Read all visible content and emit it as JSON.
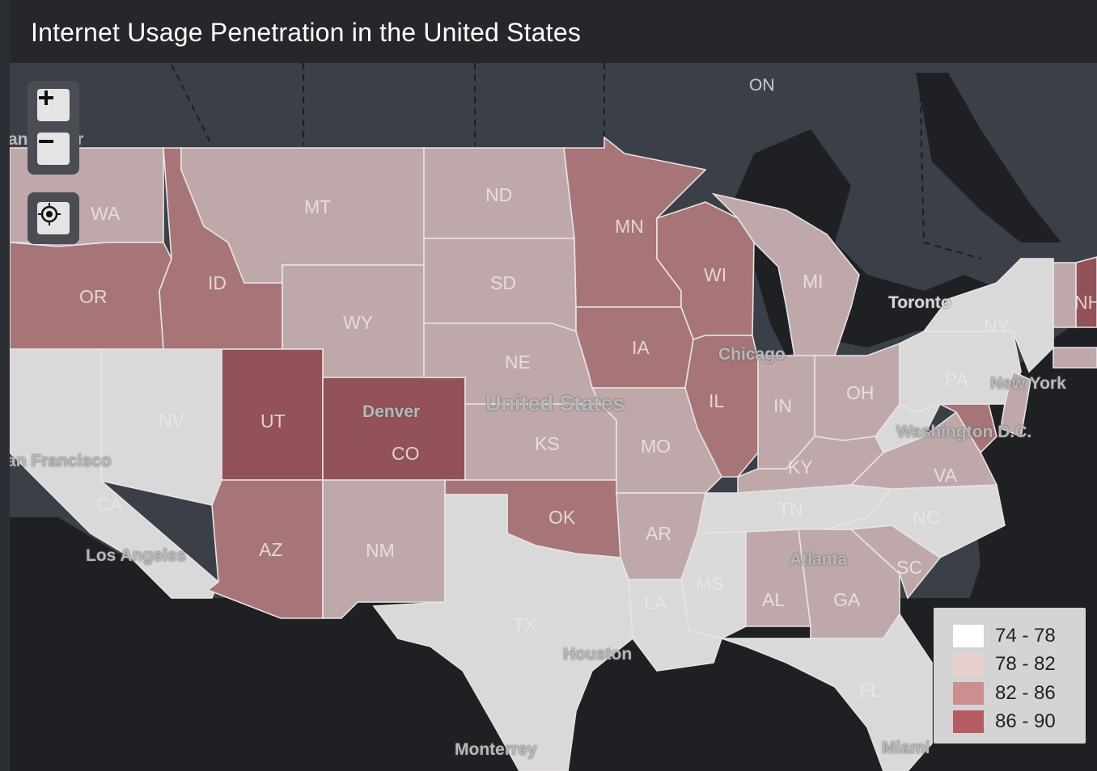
{
  "title": "Internet Usage Penetration in the United States",
  "controls": {
    "zoom_in": "+",
    "zoom_out": "−"
  },
  "colors": {
    "c74_78": "#d9d9d9",
    "c78_82": "#bfa8aa",
    "c82_86": "#a77578",
    "c86_90": "#925258",
    "water": "#1e2024",
    "land": "#3a3f48"
  },
  "legend": [
    {
      "label": "74 - 78",
      "color": "#ffffff"
    },
    {
      "label": "78 - 82",
      "color": "#e8cfcf"
    },
    {
      "label": "82 - 86",
      "color": "#cc8e8e"
    },
    {
      "label": "86 - 90",
      "color": "#b55c63"
    }
  ],
  "states": {
    "WA": "WA",
    "OR": "OR",
    "CA": "CA",
    "NV": "NV",
    "ID": "ID",
    "MT": "MT",
    "WY": "WY",
    "UT": "UT",
    "CO": "CO",
    "AZ": "AZ",
    "NM": "NM",
    "ND": "ND",
    "SD": "SD",
    "NE": "NE",
    "KS": "KS",
    "OK": "OK",
    "TX": "TX",
    "MN": "MN",
    "IA": "IA",
    "MO": "MO",
    "AR": "AR",
    "LA": "LA",
    "WI": "WI",
    "IL": "IL",
    "MI": "MI",
    "IN": "IN",
    "OH": "OH",
    "KY": "KY",
    "TN": "TN",
    "MS": "MS",
    "AL": "AL",
    "GA": "GA",
    "FL": "FL",
    "SC": "SC",
    "NC": "NC",
    "VA": "VA",
    "PA": "PA",
    "NY": "NY",
    "NH": "NH"
  },
  "cities": {
    "vancouver": "ancouver",
    "san_francisco": "an Francisco",
    "los_angeles": "Los Angeles",
    "denver": "Denver",
    "united_states": "United States",
    "chicago": "Chicago",
    "toronto": "Toronto",
    "new_york": "New York",
    "washington": "Washington D.C.",
    "atlanta": "Atlanta",
    "houston": "Houston",
    "monterrey": "Monterrey",
    "miami": "Miami",
    "on": "ON"
  }
}
